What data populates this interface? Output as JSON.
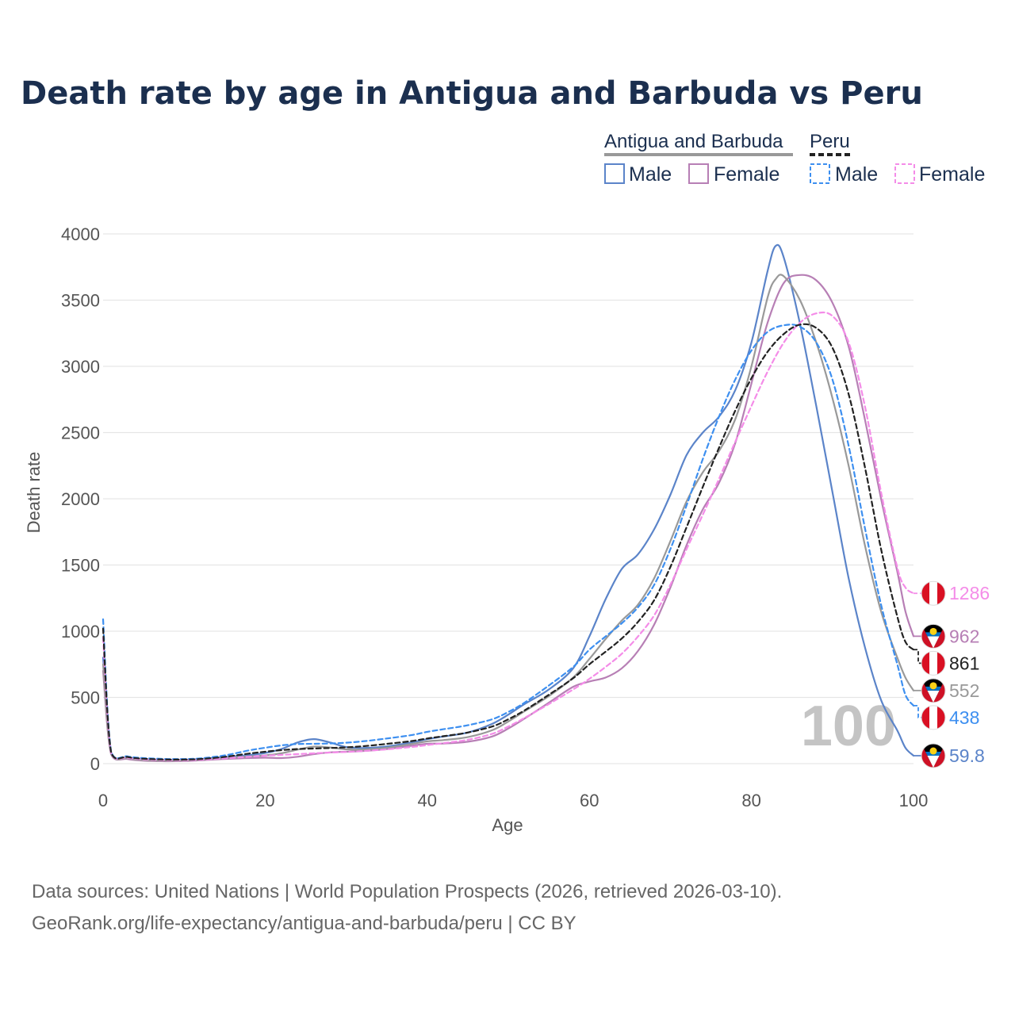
{
  "chart_data": {
    "type": "line",
    "title": "Death rate by age in Antigua and Barbuda vs Peru",
    "xlabel": "Age",
    "ylabel": "Death rate",
    "xlim": [
      0,
      100
    ],
    "ylim": [
      0,
      4000
    ],
    "xticks": [
      0,
      20,
      40,
      60,
      80,
      100
    ],
    "yticks": [
      0,
      500,
      1000,
      1500,
      2000,
      2500,
      3000,
      3500,
      4000
    ],
    "watermark_year": "100",
    "legend": {
      "groups": [
        {
          "label": "Antigua and Barbuda",
          "style": "solid",
          "color": "#999999"
        },
        {
          "label": "Peru",
          "style": "dashed",
          "color": "#222222"
        }
      ],
      "items": [
        {
          "label": "Male",
          "style": "solid",
          "color": "#5b84c9"
        },
        {
          "label": "Female",
          "style": "solid",
          "color": "#b77fb5"
        },
        {
          "label": "Male",
          "style": "dashed",
          "color": "#3d8ff0"
        },
        {
          "label": "Female",
          "style": "dashed",
          "color": "#f48ce8"
        }
      ]
    },
    "series": [
      {
        "name": "Antigua and Barbuda Male",
        "color": "#5b84c9",
        "dash": false,
        "end_label": "59.8",
        "flag": "antigua",
        "points": [
          [
            0,
            800
          ],
          [
            1,
            80
          ],
          [
            3,
            45
          ],
          [
            5,
            30
          ],
          [
            8,
            25
          ],
          [
            10,
            28
          ],
          [
            12,
            35
          ],
          [
            15,
            50
          ],
          [
            18,
            65
          ],
          [
            20,
            80
          ],
          [
            22,
            110
          ],
          [
            24,
            160
          ],
          [
            26,
            185
          ],
          [
            28,
            160
          ],
          [
            30,
            125
          ],
          [
            32,
            118
          ],
          [
            35,
            130
          ],
          [
            38,
            160
          ],
          [
            40,
            185
          ],
          [
            42,
            205
          ],
          [
            45,
            235
          ],
          [
            48,
            300
          ],
          [
            50,
            370
          ],
          [
            52,
            450
          ],
          [
            55,
            560
          ],
          [
            58,
            720
          ],
          [
            60,
            960
          ],
          [
            62,
            1240
          ],
          [
            64,
            1470
          ],
          [
            66,
            1580
          ],
          [
            68,
            1770
          ],
          [
            70,
            2030
          ],
          [
            72,
            2330
          ],
          [
            74,
            2500
          ],
          [
            76,
            2620
          ],
          [
            78,
            2820
          ],
          [
            80,
            3180
          ],
          [
            82,
            3720
          ],
          [
            83,
            3910
          ],
          [
            84,
            3820
          ],
          [
            86,
            3320
          ],
          [
            88,
            2700
          ],
          [
            90,
            2050
          ],
          [
            92,
            1400
          ],
          [
            94,
            880
          ],
          [
            96,
            480
          ],
          [
            98,
            250
          ],
          [
            99,
            120
          ],
          [
            100,
            59.8
          ]
        ]
      },
      {
        "name": "Antigua and Barbuda Female",
        "color": "#b77fb5",
        "dash": false,
        "end_label": "962",
        "flag": "antigua",
        "points": [
          [
            0,
            700
          ],
          [
            1,
            70
          ],
          [
            3,
            35
          ],
          [
            5,
            22
          ],
          [
            8,
            18
          ],
          [
            10,
            20
          ],
          [
            12,
            25
          ],
          [
            15,
            35
          ],
          [
            18,
            42
          ],
          [
            20,
            45
          ],
          [
            22,
            42
          ],
          [
            24,
            52
          ],
          [
            26,
            72
          ],
          [
            28,
            85
          ],
          [
            30,
            90
          ],
          [
            32,
            95
          ],
          [
            35,
            110
          ],
          [
            38,
            135
          ],
          [
            40,
            150
          ],
          [
            42,
            152
          ],
          [
            45,
            165
          ],
          [
            48,
            205
          ],
          [
            50,
            265
          ],
          [
            52,
            340
          ],
          [
            55,
            460
          ],
          [
            58,
            580
          ],
          [
            60,
            620
          ],
          [
            62,
            650
          ],
          [
            64,
            720
          ],
          [
            66,
            850
          ],
          [
            68,
            1050
          ],
          [
            70,
            1330
          ],
          [
            72,
            1650
          ],
          [
            74,
            1920
          ],
          [
            76,
            2120
          ],
          [
            78,
            2420
          ],
          [
            80,
            2870
          ],
          [
            82,
            3330
          ],
          [
            84,
            3630
          ],
          [
            86,
            3690
          ],
          [
            88,
            3650
          ],
          [
            90,
            3480
          ],
          [
            92,
            3150
          ],
          [
            94,
            2600
          ],
          [
            96,
            2000
          ],
          [
            98,
            1450
          ],
          [
            99,
            1150
          ],
          [
            100,
            962
          ]
        ]
      },
      {
        "name": "Antigua and Barbuda Total",
        "color": "#999999",
        "dash": false,
        "end_label": "552",
        "flag": "antigua",
        "points": [
          [
            0,
            750
          ],
          [
            1,
            75
          ],
          [
            3,
            40
          ],
          [
            5,
            26
          ],
          [
            8,
            22
          ],
          [
            10,
            24
          ],
          [
            12,
            30
          ],
          [
            15,
            42
          ],
          [
            18,
            54
          ],
          [
            20,
            62
          ],
          [
            22,
            78
          ],
          [
            24,
            106
          ],
          [
            26,
            128
          ],
          [
            28,
            122
          ],
          [
            30,
            108
          ],
          [
            32,
            106
          ],
          [
            35,
            120
          ],
          [
            38,
            148
          ],
          [
            40,
            168
          ],
          [
            42,
            178
          ],
          [
            45,
            200
          ],
          [
            48,
            252
          ],
          [
            50,
            318
          ],
          [
            52,
            395
          ],
          [
            55,
            510
          ],
          [
            58,
            650
          ],
          [
            60,
            790
          ],
          [
            62,
            940
          ],
          [
            64,
            1080
          ],
          [
            66,
            1200
          ],
          [
            68,
            1400
          ],
          [
            70,
            1680
          ],
          [
            72,
            1980
          ],
          [
            74,
            2200
          ],
          [
            76,
            2360
          ],
          [
            78,
            2600
          ],
          [
            80,
            3000
          ],
          [
            82,
            3520
          ],
          [
            83,
            3660
          ],
          [
            84,
            3680
          ],
          [
            86,
            3500
          ],
          [
            88,
            3180
          ],
          [
            90,
            2760
          ],
          [
            92,
            2250
          ],
          [
            94,
            1650
          ],
          [
            96,
            1150
          ],
          [
            98,
            800
          ],
          [
            99,
            650
          ],
          [
            100,
            552
          ]
        ]
      },
      {
        "name": "Peru Male",
        "color": "#3d8ff0",
        "dash": true,
        "end_label": "438",
        "flag": "peru",
        "points": [
          [
            0,
            1090
          ],
          [
            1,
            90
          ],
          [
            3,
            55
          ],
          [
            5,
            42
          ],
          [
            8,
            35
          ],
          [
            10,
            35
          ],
          [
            12,
            40
          ],
          [
            15,
            62
          ],
          [
            18,
            100
          ],
          [
            20,
            120
          ],
          [
            22,
            138
          ],
          [
            24,
            148
          ],
          [
            26,
            150
          ],
          [
            28,
            152
          ],
          [
            30,
            158
          ],
          [
            32,
            168
          ],
          [
            35,
            190
          ],
          [
            38,
            215
          ],
          [
            40,
            240
          ],
          [
            42,
            260
          ],
          [
            45,
            290
          ],
          [
            48,
            335
          ],
          [
            50,
            390
          ],
          [
            52,
            460
          ],
          [
            55,
            590
          ],
          [
            58,
            730
          ],
          [
            60,
            860
          ],
          [
            62,
            960
          ],
          [
            64,
            1060
          ],
          [
            66,
            1180
          ],
          [
            68,
            1350
          ],
          [
            70,
            1620
          ],
          [
            72,
            1950
          ],
          [
            74,
            2300
          ],
          [
            76,
            2620
          ],
          [
            78,
            2900
          ],
          [
            80,
            3120
          ],
          [
            82,
            3260
          ],
          [
            84,
            3310
          ],
          [
            86,
            3300
          ],
          [
            88,
            3180
          ],
          [
            90,
            2900
          ],
          [
            92,
            2400
          ],
          [
            94,
            1780
          ],
          [
            96,
            1200
          ],
          [
            98,
            750
          ],
          [
            99,
            520
          ],
          [
            100,
            438
          ]
        ]
      },
      {
        "name": "Peru Female",
        "color": "#f48ce8",
        "dash": true,
        "end_label": "1286",
        "flag": "peru",
        "points": [
          [
            0,
            950
          ],
          [
            1,
            80
          ],
          [
            3,
            45
          ],
          [
            5,
            32
          ],
          [
            8,
            27
          ],
          [
            10,
            27
          ],
          [
            12,
            30
          ],
          [
            15,
            40
          ],
          [
            18,
            52
          ],
          [
            20,
            60
          ],
          [
            22,
            66
          ],
          [
            24,
            72
          ],
          [
            26,
            78
          ],
          [
            28,
            84
          ],
          [
            30,
            88
          ],
          [
            32,
            95
          ],
          [
            35,
            108
          ],
          [
            38,
            125
          ],
          [
            40,
            140
          ],
          [
            42,
            155
          ],
          [
            45,
            180
          ],
          [
            48,
            225
          ],
          [
            50,
            280
          ],
          [
            52,
            345
          ],
          [
            55,
            450
          ],
          [
            58,
            560
          ],
          [
            60,
            640
          ],
          [
            62,
            730
          ],
          [
            64,
            830
          ],
          [
            66,
            960
          ],
          [
            68,
            1120
          ],
          [
            70,
            1350
          ],
          [
            72,
            1620
          ],
          [
            74,
            1880
          ],
          [
            76,
            2150
          ],
          [
            78,
            2430
          ],
          [
            80,
            2700
          ],
          [
            82,
            2960
          ],
          [
            84,
            3180
          ],
          [
            86,
            3330
          ],
          [
            88,
            3400
          ],
          [
            90,
            3380
          ],
          [
            92,
            3180
          ],
          [
            94,
            2700
          ],
          [
            96,
            2050
          ],
          [
            98,
            1480
          ],
          [
            99,
            1330
          ],
          [
            100,
            1286
          ]
        ]
      },
      {
        "name": "Peru Total",
        "color": "#222222",
        "dash": true,
        "end_label": "861",
        "flag": "peru",
        "points": [
          [
            0,
            1020
          ],
          [
            1,
            85
          ],
          [
            3,
            50
          ],
          [
            5,
            37
          ],
          [
            8,
            31
          ],
          [
            10,
            31
          ],
          [
            12,
            35
          ],
          [
            15,
            51
          ],
          [
            18,
            76
          ],
          [
            20,
            90
          ],
          [
            22,
            102
          ],
          [
            24,
            110
          ],
          [
            26,
            114
          ],
          [
            28,
            118
          ],
          [
            30,
            123
          ],
          [
            32,
            131
          ],
          [
            35,
            149
          ],
          [
            38,
            170
          ],
          [
            40,
            190
          ],
          [
            42,
            207
          ],
          [
            45,
            235
          ],
          [
            48,
            280
          ],
          [
            50,
            335
          ],
          [
            52,
            402
          ],
          [
            55,
            520
          ],
          [
            58,
            645
          ],
          [
            60,
            750
          ],
          [
            62,
            845
          ],
          [
            64,
            945
          ],
          [
            66,
            1070
          ],
          [
            68,
            1235
          ],
          [
            70,
            1485
          ],
          [
            72,
            1785
          ],
          [
            74,
            2090
          ],
          [
            76,
            2385
          ],
          [
            78,
            2665
          ],
          [
            80,
            2910
          ],
          [
            82,
            3110
          ],
          [
            84,
            3245
          ],
          [
            86,
            3315
          ],
          [
            88,
            3290
          ],
          [
            90,
            3140
          ],
          [
            92,
            2790
          ],
          [
            94,
            2240
          ],
          [
            96,
            1620
          ],
          [
            98,
            1110
          ],
          [
            99,
            920
          ],
          [
            100,
            861
          ]
        ]
      }
    ]
  },
  "footer": {
    "source_line": "Data sources: United Nations | World Population Prospects (2026, retrieved 2026-03-10).",
    "url_line": "GeoRank.org/life-expectancy/antigua-and-barbuda/peru | CC BY"
  }
}
